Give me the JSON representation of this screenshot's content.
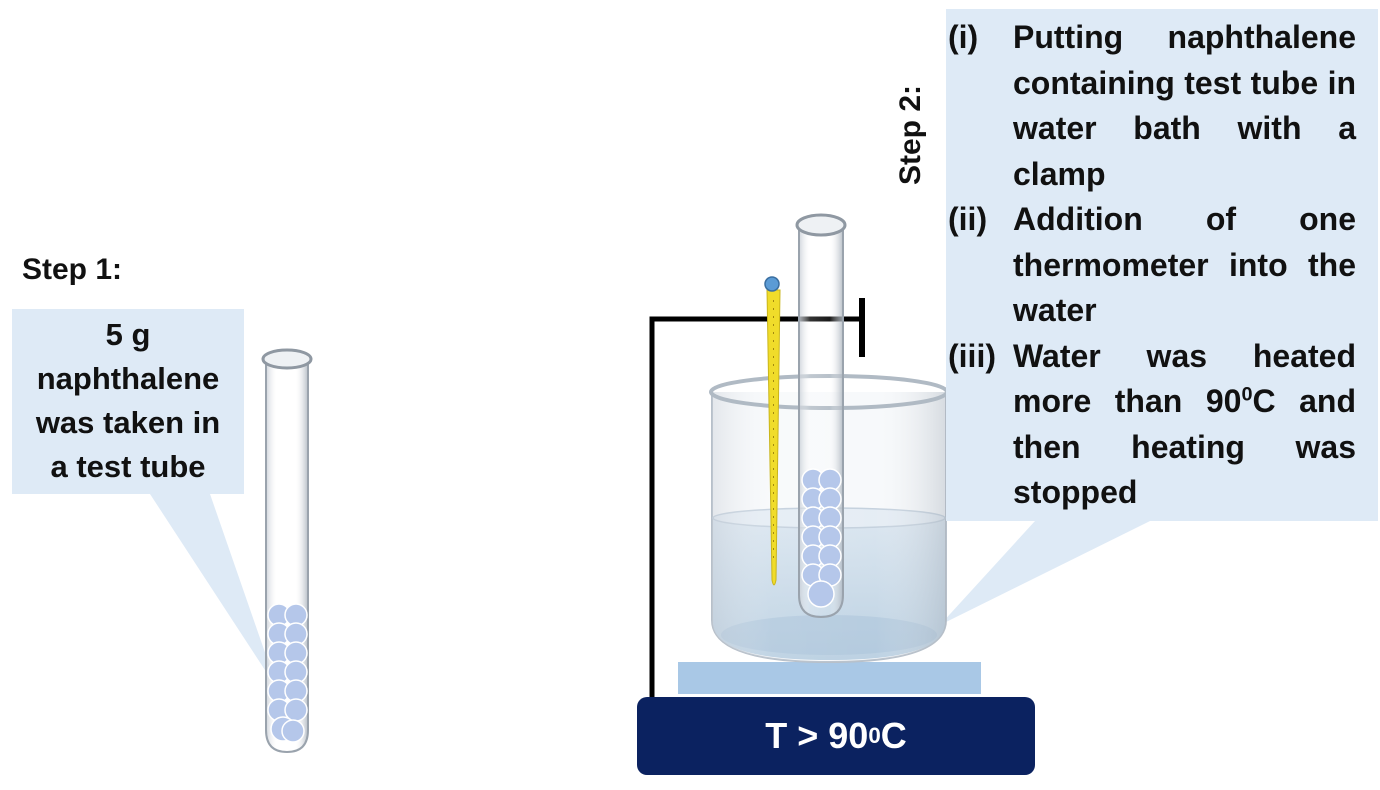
{
  "step1": {
    "heading": "Step 1:",
    "note_lines": [
      "5 g",
      "naphthalene",
      "was taken in",
      "a test tube"
    ]
  },
  "step2": {
    "heading": "Step 2:",
    "items": [
      {
        "num": "(i)",
        "text": "Putting naphthalene containing test tube in water bath with a clamp"
      },
      {
        "num": "(ii)",
        "text": "Addition of one thermometer into the water"
      },
      {
        "num": "(iii)",
        "text_pre": "Water was heated more than 90",
        "text_sup": "0",
        "text_post": "C and then heating was stopped"
      }
    ]
  },
  "heater": {
    "label_pre": "T > 90",
    "label_sup": "0",
    "label_post": "C"
  },
  "colors": {
    "callout_fill": "#deeaf6",
    "naphthalene": "#b5c7ea",
    "water": "#c9d9e8",
    "heater_plate": "#a9c8e6",
    "heater_base": "#0b2260",
    "thermometer": "#f0dc2a",
    "clamp": "#000000"
  },
  "icons": [
    "test-tube-icon",
    "beaker-icon",
    "thermometer-icon",
    "clamp-icon",
    "hot-plate-icon"
  ]
}
